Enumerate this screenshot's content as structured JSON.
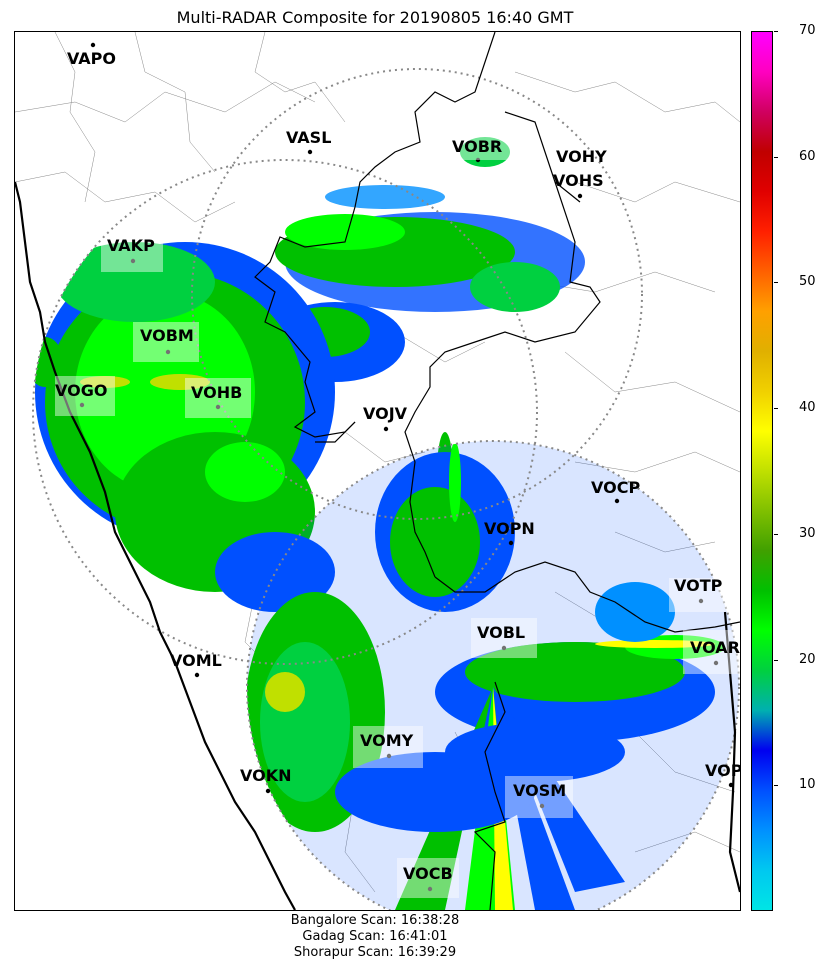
{
  "title": "Multi-RADAR Composite for 20190805 16:40 GMT",
  "colorbar": {
    "ticks": [
      "10",
      "20",
      "30",
      "40",
      "50",
      "60",
      "70"
    ],
    "min": 0,
    "max": 70,
    "colors": [
      "#00e5e5",
      "#00c8f0",
      "#0090ff",
      "#0050ff",
      "#0000f0",
      "#00b0b0",
      "#00d040",
      "#00ff00",
      "#00c000",
      "#40a000",
      "#80c000",
      "#c0e000",
      "#ffff00",
      "#f0d000",
      "#e0b000",
      "#ffa000",
      "#ff6000",
      "#ff2000",
      "#e00000",
      "#c00000",
      "#d00060",
      "#ff00c0",
      "#ff00ff"
    ]
  },
  "stations": [
    {
      "code": "VAPO"
    },
    {
      "code": "VASL"
    },
    {
      "code": "VOBR"
    },
    {
      "code": "VOHY"
    },
    {
      "code": "VOHS"
    },
    {
      "code": "VAKP"
    },
    {
      "code": "VOBM"
    },
    {
      "code": "VOGO"
    },
    {
      "code": "VOHB"
    },
    {
      "code": "VOJV"
    },
    {
      "code": "VOCP"
    },
    {
      "code": "VOPN"
    },
    {
      "code": "VOTP"
    },
    {
      "code": "VOBL"
    },
    {
      "code": "VOAR"
    },
    {
      "code": "VOML"
    },
    {
      "code": "VOMY"
    },
    {
      "code": "VOKN"
    },
    {
      "code": "VOSM"
    },
    {
      "code": "VOPC"
    },
    {
      "code": "VOCB"
    }
  ],
  "scan_times": {
    "bangalore": "Bangalore Scan: 16:38:28",
    "gadag": "Gadag Scan: 16:41:01",
    "shorapur": "Shorapur Scan: 16:39:29"
  }
}
